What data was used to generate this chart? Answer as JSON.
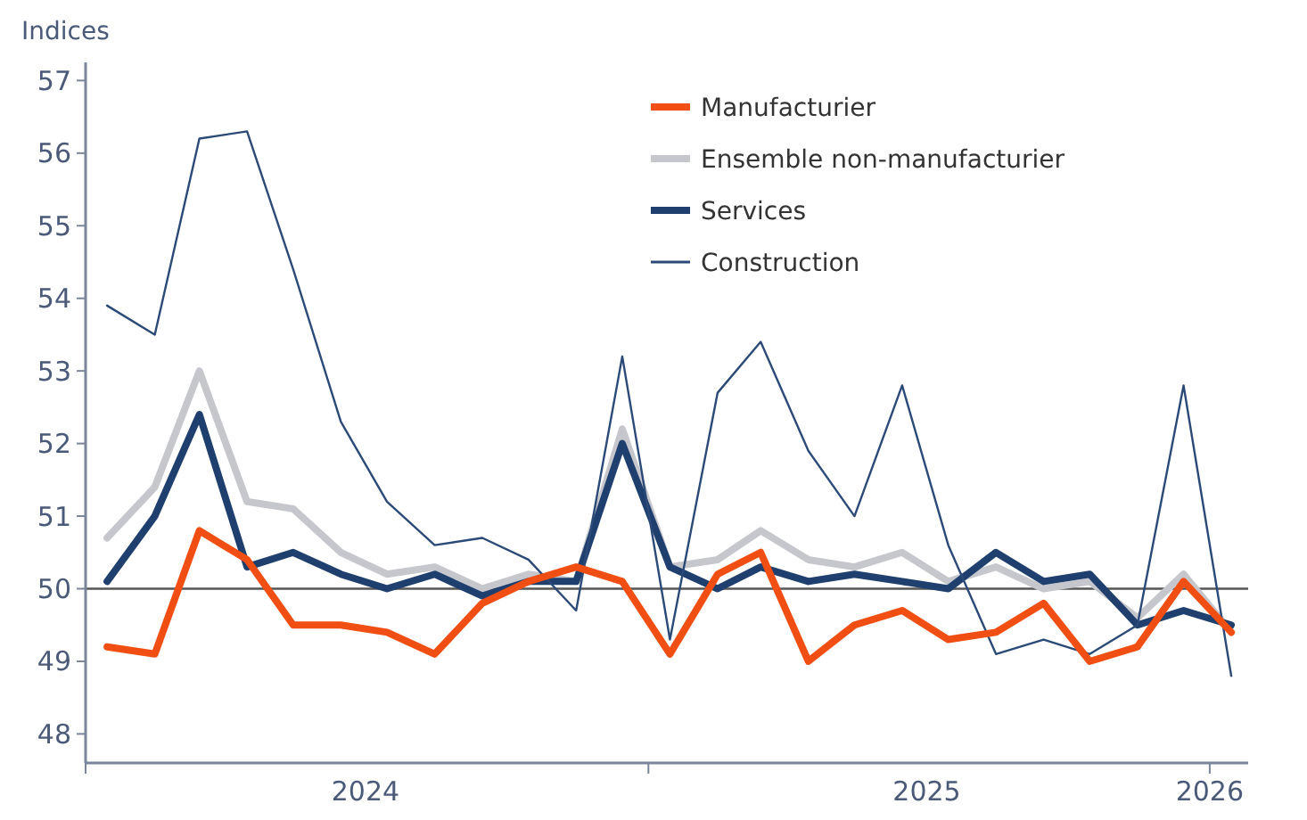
{
  "chart_data": {
    "type": "line",
    "ylabel": "Indices",
    "x": [
      "2024-01-15",
      "2024-02-15",
      "2024-03-15",
      "2024-04-15",
      "2024-05-15",
      "2024-06-15",
      "2024-07-15",
      "2024-08-15",
      "2024-09-15",
      "2024-10-15",
      "2024-11-15",
      "2024-12-15",
      "2025-01-15",
      "2025-02-15",
      "2025-03-15",
      "2025-04-15",
      "2025-05-15",
      "2025-06-15",
      "2025-07-15",
      "2025-08-15",
      "2025-09-15",
      "2025-10-15",
      "2025-11-15",
      "2025-12-15",
      "2026-01-15"
    ],
    "xlim": [
      "2024-01-01",
      "2026-01-26"
    ],
    "xticks": [
      {
        "value": "2024-01-01",
        "label": null
      },
      {
        "value": "2024-07-01",
        "label": "2024"
      },
      {
        "value": "2025-01-01",
        "label": null
      },
      {
        "value": "2025-07-01",
        "label": "2025"
      },
      {
        "value": "2026-01-01",
        "label": "2026"
      }
    ],
    "ylim": [
      47.6,
      57.25
    ],
    "yticks": [
      48,
      49,
      50,
      51,
      52,
      53,
      54,
      55,
      56,
      57
    ],
    "ref_lines": [
      {
        "axis": "y",
        "value": 50,
        "color": "#555555"
      }
    ],
    "legend": "top right",
    "grid": false,
    "marker": "none",
    "line_style": "solid",
    "series": [
      {
        "name": "Manufacturier",
        "color": "#f04e12",
        "values": [
          49.2,
          49.1,
          50.8,
          50.4,
          49.5,
          49.5,
          49.4,
          49.1,
          49.8,
          50.1,
          50.3,
          50.1,
          49.1,
          50.2,
          50.5,
          49.0,
          49.5,
          49.7,
          49.3,
          49.4,
          49.8,
          49.0,
          49.2,
          50.1,
          49.4
        ]
      },
      {
        "name": "Ensemble non-manufacturier",
        "color": "#c6c7cc",
        "values": [
          50.7,
          51.4,
          53.0,
          51.2,
          51.1,
          50.5,
          50.2,
          50.3,
          50.0,
          50.2,
          50.1,
          52.2,
          50.3,
          50.4,
          50.8,
          50.4,
          50.3,
          50.5,
          50.1,
          50.3,
          50.0,
          50.1,
          49.6,
          50.2,
          49.4
        ]
      },
      {
        "name": "Services",
        "color": "#1f3f6e",
        "values": [
          50.1,
          51.0,
          52.4,
          50.3,
          50.5,
          50.2,
          50.0,
          50.2,
          49.9,
          50.1,
          50.1,
          52.0,
          50.3,
          50.0,
          50.3,
          50.1,
          50.2,
          50.1,
          50.0,
          50.5,
          50.1,
          50.2,
          49.5,
          49.7,
          49.5
        ]
      },
      {
        "name": "Construction",
        "color": "#2b4a78",
        "values": [
          53.9,
          53.5,
          56.2,
          56.3,
          54.4,
          52.3,
          51.2,
          50.6,
          50.7,
          50.4,
          49.7,
          53.2,
          49.3,
          52.7,
          53.4,
          51.9,
          51.0,
          52.8,
          50.6,
          49.1,
          49.3,
          49.1,
          49.5,
          52.8,
          48.8
        ]
      }
    ]
  }
}
